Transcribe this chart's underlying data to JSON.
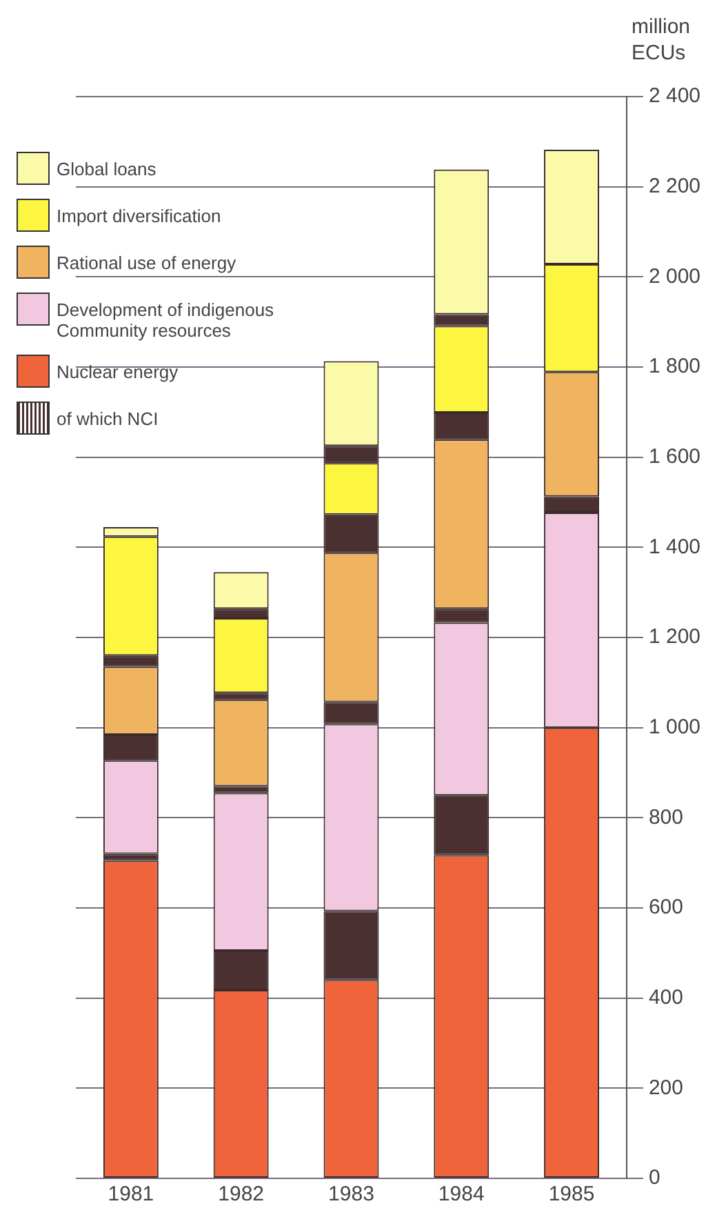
{
  "chart_data": {
    "type": "bar",
    "stacked": true,
    "ylabel": "million ECUs",
    "categories": [
      "1981",
      "1982",
      "1983",
      "1984",
      "1985"
    ],
    "ylim": [
      0,
      2400
    ],
    "yticks": [
      0,
      200,
      400,
      600,
      800,
      {
        "value": 1000,
        "label": "1 000"
      },
      {
        "value": 1200,
        "label": "1 200"
      },
      {
        "value": 1400,
        "label": "1 400"
      },
      {
        "value": 1600,
        "label": "1 600"
      },
      {
        "value": 1800,
        "label": "1 800"
      },
      {
        "value": 2000,
        "label": "2 000"
      },
      {
        "value": 2200,
        "label": "2 200"
      },
      {
        "value": 2400,
        "label": "2 400"
      }
    ],
    "grid": "y",
    "legend": "top left",
    "series": [
      {
        "name": "Nuclear energy",
        "color": "#f0643c",
        "values": [
          705,
          418,
          440,
          717,
          1000
        ]
      },
      {
        "name": "of which NCI",
        "color": "#4a3030",
        "values": [
          15,
          87,
          153,
          133,
          null
        ]
      },
      {
        "name": "Development of indigenous Community resources",
        "color": "#f2c8e0",
        "values": [
          207,
          350,
          415,
          383,
          477
        ]
      },
      {
        "color": "#4a3030",
        "values": [
          57,
          15,
          49,
          31,
          36
        ]
      },
      {
        "name": "Rational use of energy",
        "color": "#f0b460",
        "values": [
          151,
          192,
          331,
          375,
          276
        ]
      },
      {
        "color": "#4a3030",
        "values": [
          25,
          15,
          85,
          60,
          null
        ]
      },
      {
        "name": "Import diversification",
        "color": "#fcf640",
        "values": [
          264,
          166,
          114,
          192,
          239
        ]
      },
      {
        "color": "#4a3030",
        "values": [
          null,
          21,
          38,
          26,
          null
        ]
      },
      {
        "name": "Global loans",
        "color": "#fafaa8",
        "values": [
          21,
          81,
          188,
          321,
          254
        ]
      }
    ]
  }
}
